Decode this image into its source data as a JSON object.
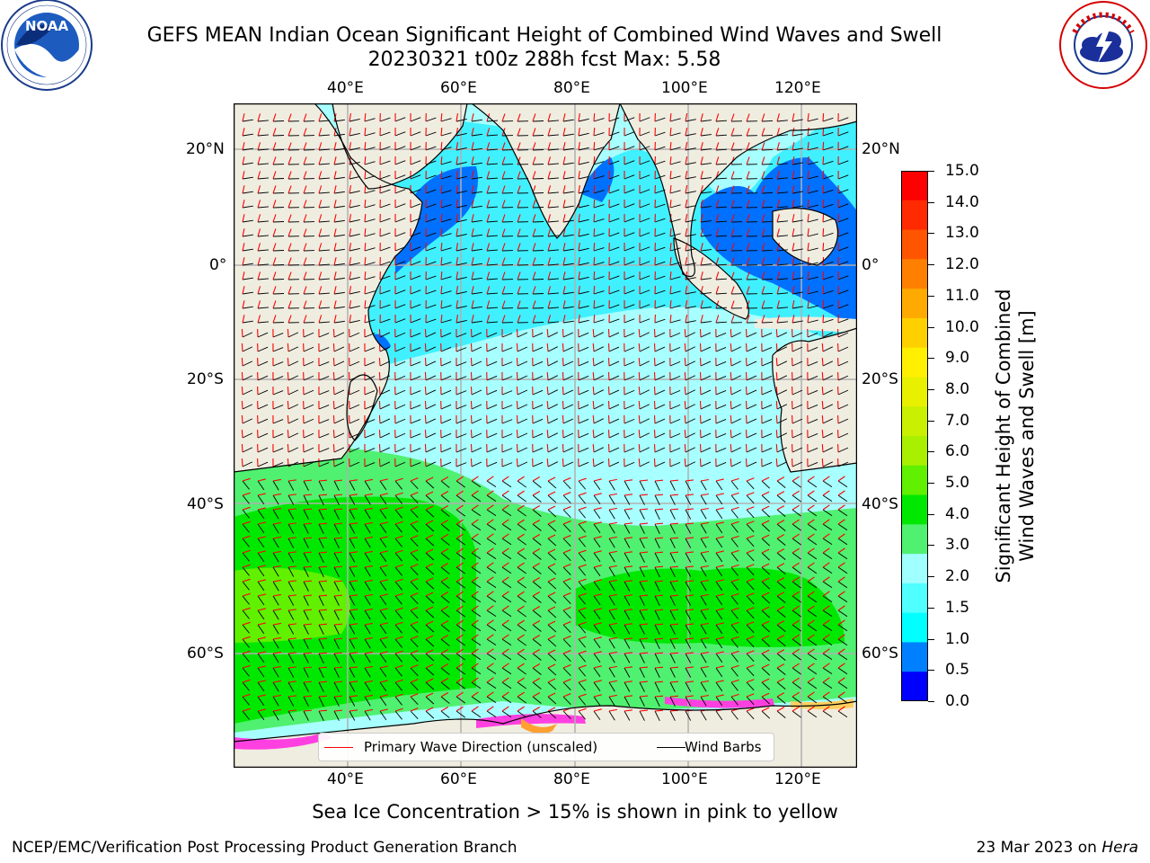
{
  "header": {
    "title_line1": "GEFS MEAN Indian Ocean Significant Height of Combined Wind Waves and Swell",
    "title_line2": "20230321 t00z 288h fcst   Max: 5.58"
  },
  "logos": {
    "left": {
      "name": "NOAA",
      "ring_text": "NATIONAL OCEANIC AND ATMOSPHERIC ADMINISTRATION · U.S. DEPARTMENT OF COMMERCE"
    },
    "right": {
      "name": "NATIONAL WEATHER SERVICE"
    }
  },
  "axes": {
    "lon_labels": [
      "40°E",
      "60°E",
      "80°E",
      "100°E",
      "120°E"
    ],
    "lat_labels": [
      "20°N",
      "0°",
      "20°S",
      "40°S",
      "60°S"
    ]
  },
  "colorbar": {
    "ticks": [
      "15.0",
      "14.0",
      "13.0",
      "12.0",
      "11.0",
      "10.0",
      "9.0",
      "8.0",
      "7.0",
      "6.0",
      "5.0",
      "4.0",
      "3.0",
      "2.0",
      "1.5",
      "1.0",
      "0.5",
      "0.0"
    ],
    "label_line1": "Significant Height of Combined",
    "label_line2": "Wind Waves and Swell [m]",
    "colors": [
      "#ff0000",
      "#ff2a00",
      "#ff5500",
      "#ff8000",
      "#ffaa00",
      "#ffd000",
      "#fff000",
      "#e8f000",
      "#c8f000",
      "#a8f000",
      "#60f000",
      "#00e800",
      "#50f070",
      "#a0ffff",
      "#50ffff",
      "#00ffff",
      "#0080ff",
      "#0000ff"
    ]
  },
  "legend": {
    "wave_label": "Primary Wave Direction (unscaled)",
    "wind_label": "Wind Barbs"
  },
  "footer": {
    "sea_ice_note": "Sea Ice Concentration > 15% is shown in pink to yellow",
    "branch": "NCEP/EMC/Verification Post Processing Product Generation Branch",
    "date": "23 Mar 2023 on ",
    "machine": "Hera"
  },
  "colors": {
    "land": "#efede0",
    "blue": "#0070ff",
    "cyan": "#40f0ff",
    "light_cyan": "#a8ffff",
    "light_green": "#50f070",
    "green": "#00e800",
    "lime": "#60f000",
    "arrow": "#ff0000",
    "barb": "#000000"
  }
}
